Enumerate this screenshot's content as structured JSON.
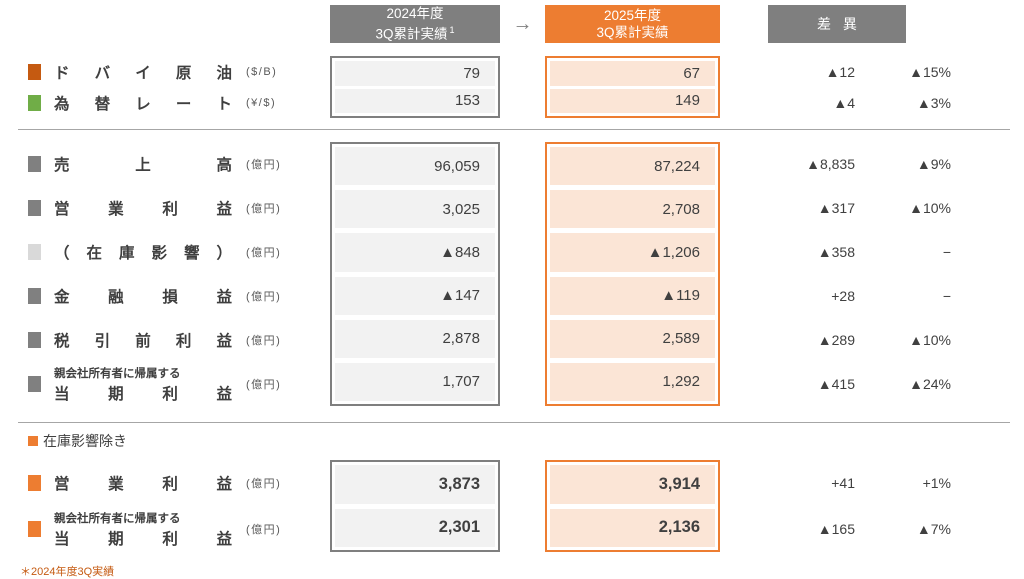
{
  "headers": {
    "col2024": {
      "line1": "2024年度",
      "line2": "3Q累計実績",
      "sup": "1"
    },
    "col2025": {
      "line1": "2025年度",
      "line2": "3Q累計実績"
    },
    "diff": "差 異",
    "arrow": "→"
  },
  "indicators": {
    "rows": [
      {
        "label": "ドバイ原油",
        "unit": "($/B)",
        "v2024": "79",
        "v2025": "67",
        "diff": "▲12",
        "pct": "▲15%",
        "marker_color": "#C55A11"
      },
      {
        "label": "為替レート",
        "unit": "(¥/$)",
        "v2024": "153",
        "v2025": "149",
        "diff": "▲4",
        "pct": "▲3%",
        "marker_color": "#70AD47"
      }
    ]
  },
  "pl": {
    "rows": [
      {
        "label": "売上高",
        "unit": "(億円)",
        "v2024": "96,059",
        "v2025": "87,224",
        "diff": "▲8,835",
        "pct": "▲9%",
        "marker_color": "#808080"
      },
      {
        "label": "営業利益",
        "unit": "(億円)",
        "v2024": "3,025",
        "v2025": "2,708",
        "diff": "▲317",
        "pct": "▲10%",
        "marker_color": "#808080"
      },
      {
        "label": "（在庫影響）",
        "unit": "(億円)",
        "v2024": "▲848",
        "v2025": "▲1,206",
        "diff": "▲358",
        "pct": "−",
        "marker_color": "#D9D9D9"
      },
      {
        "label": "金融損益",
        "unit": "(億円)",
        "v2024": "▲147",
        "v2025": "▲119",
        "diff": "+28",
        "pct": "−",
        "marker_color": "#808080"
      },
      {
        "label": "税引前利益",
        "unit": "(億円)",
        "v2024": "2,878",
        "v2025": "2,589",
        "diff": "▲289",
        "pct": "▲10%",
        "marker_color": "#808080"
      },
      {
        "label_sub": "親会社所有者に帰属する",
        "label": "当期利益",
        "unit": "(億円)",
        "v2024": "1,707",
        "v2025": "1,292",
        "diff": "▲415",
        "pct": "▲24%",
        "marker_color": "#808080"
      }
    ]
  },
  "ex_inventory": {
    "section_title": "在庫影響除き",
    "rows": [
      {
        "label": "営業利益",
        "unit": "(億円)",
        "v2024": "3,873",
        "v2025": "3,914",
        "diff": "+41",
        "pct": "+1%",
        "marker_color": "#ED7D31"
      },
      {
        "label_sub": "親会社所有者に帰属する",
        "label": "当期利益",
        "unit": "(億円)",
        "v2024": "2,301",
        "v2025": "2,136",
        "diff": "▲165",
        "pct": "▲7%",
        "marker_color": "#ED7D31"
      }
    ]
  },
  "footnote": "＊2024年度3Q実績",
  "colors": {
    "header_gray": "#7F7F7F",
    "header_orange": "#ED7D31",
    "cell_gray_fill": "#F2F2F2",
    "cell_orange_fill": "#FBE5D6",
    "border_gray": "#7F7F7F",
    "border_orange": "#ED7D31",
    "divider_gray": "#A6A6A6"
  }
}
